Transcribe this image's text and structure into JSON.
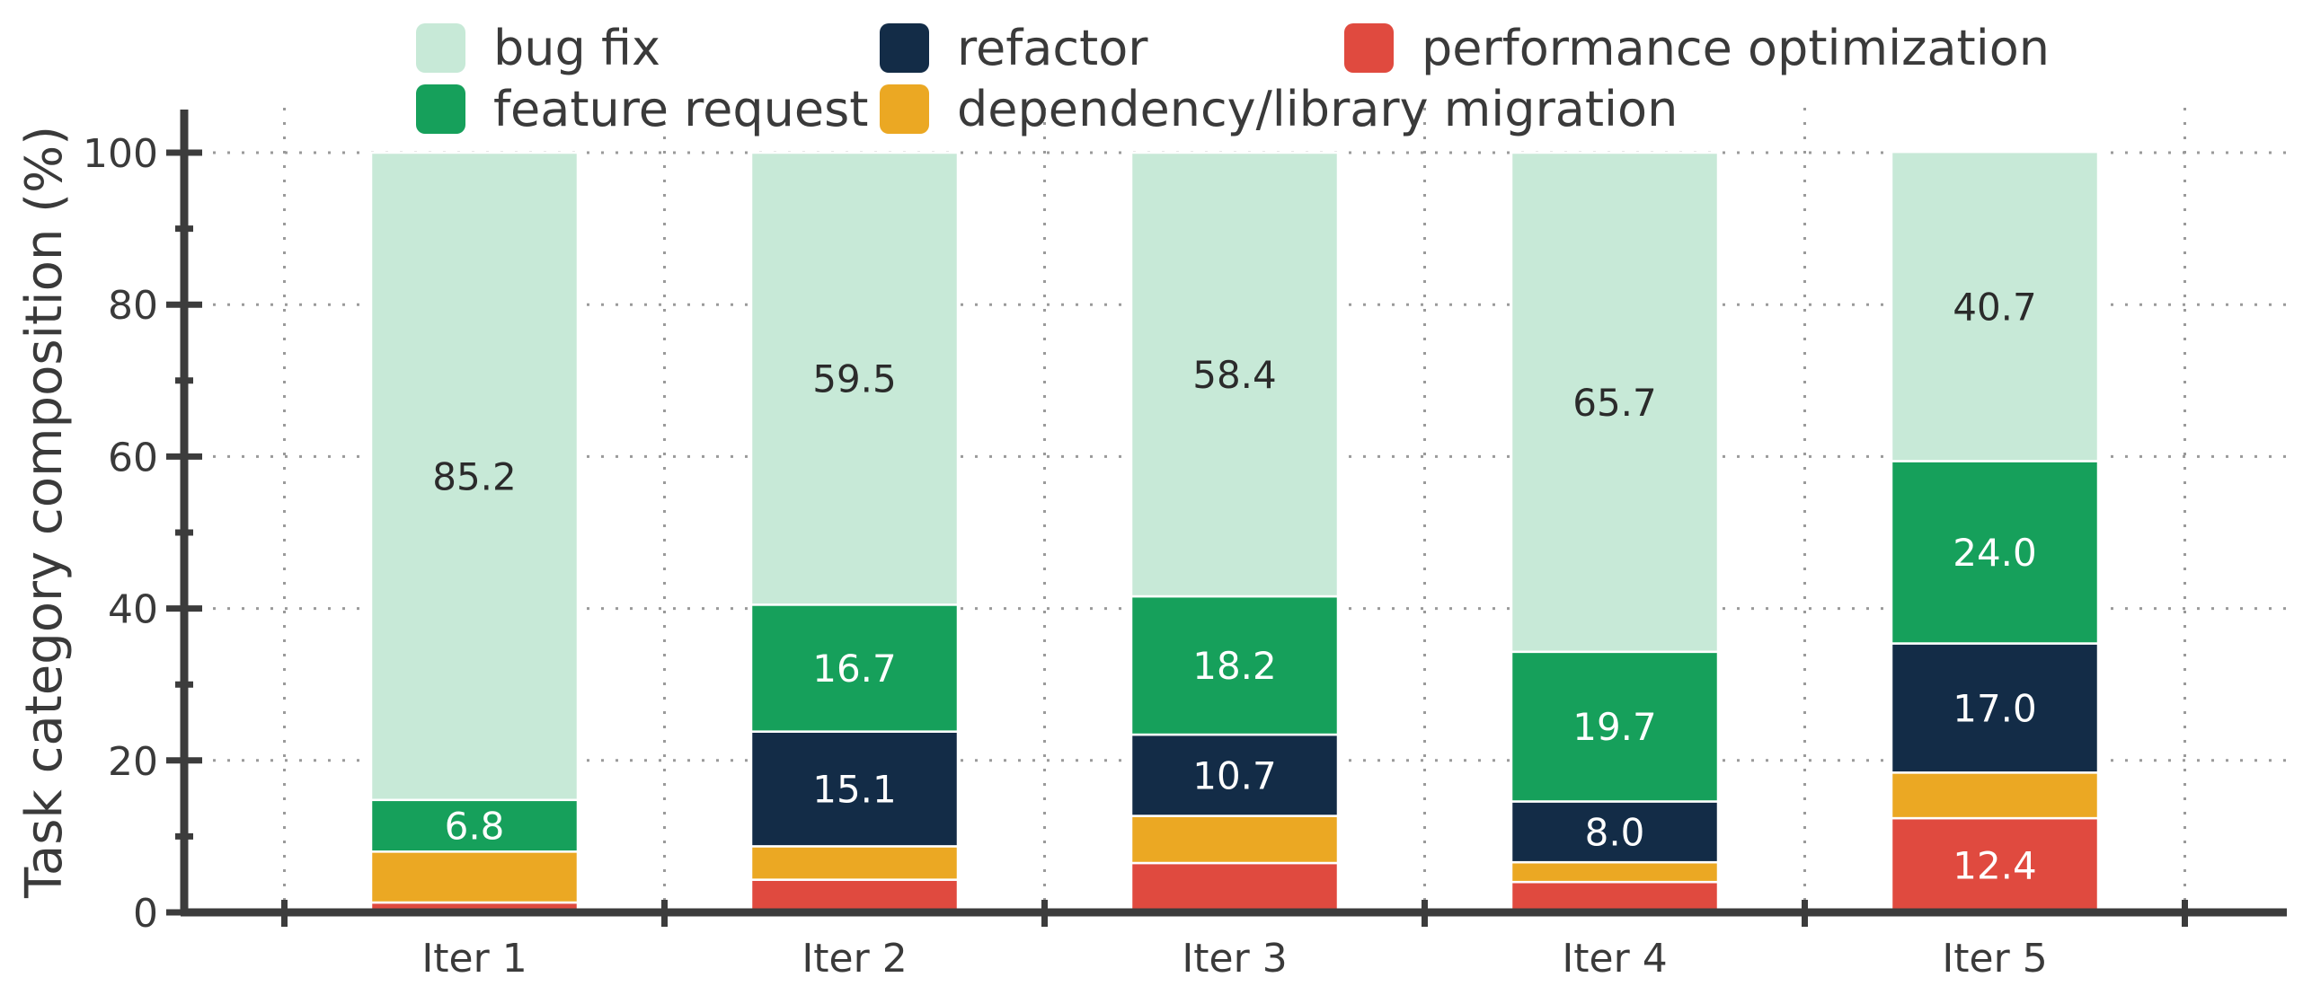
{
  "chart_data": {
    "type": "bar",
    "stacked": true,
    "title": "",
    "xlabel": "",
    "ylabel": "Task category composition (%)",
    "ylim": [
      0,
      100
    ],
    "yticks": [
      "0",
      "20",
      "40",
      "60",
      "80",
      "100"
    ],
    "categories": [
      "Iter 1",
      "Iter 2",
      "Iter 3",
      "Iter 4",
      "Iter 5"
    ],
    "grid": true,
    "legend_position": "top",
    "series": [
      {
        "name": "performance optimization",
        "color": "#e04a3f",
        "values": [
          1.3,
          4.3,
          6.5,
          4.0,
          12.4
        ],
        "labels": [
          "",
          "",
          "",
          "",
          "12.4"
        ]
      },
      {
        "name": "dependency/library migration",
        "color": "#eba823",
        "values": [
          6.7,
          4.4,
          6.2,
          2.6,
          6.0
        ],
        "labels": [
          "",
          "",
          "",
          "",
          ""
        ]
      },
      {
        "name": "refactor",
        "color": "#132c47",
        "values": [
          0.0,
          15.1,
          10.7,
          8.0,
          17.0
        ],
        "labels": [
          "",
          "15.1",
          "10.7",
          "8.0",
          "17.0"
        ]
      },
      {
        "name": "feature request",
        "color": "#16a05b",
        "values": [
          6.8,
          16.7,
          18.2,
          19.7,
          24.0
        ],
        "labels": [
          "6.8",
          "16.7",
          "18.2",
          "19.7",
          "24.0"
        ]
      },
      {
        "name": "bug fix",
        "color": "#c7e9d7",
        "values": [
          85.2,
          59.5,
          58.4,
          65.7,
          40.7
        ],
        "labels": [
          "85.2",
          "59.5",
          "58.4",
          "65.7",
          "40.7"
        ]
      }
    ],
    "legend_order": [
      "bug fix",
      "refactor",
      "performance optimization",
      "feature request",
      "dependency/library migration"
    ]
  }
}
